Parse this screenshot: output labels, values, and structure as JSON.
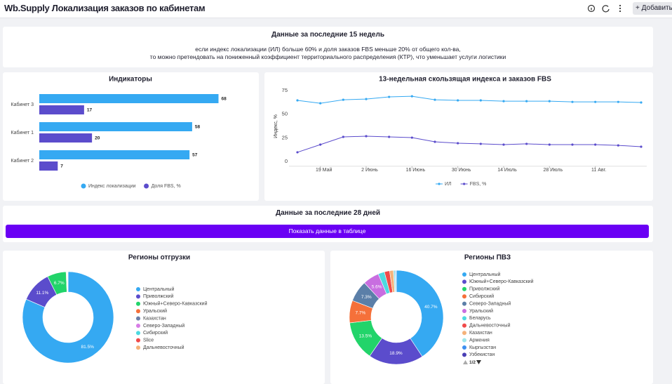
{
  "header": {
    "title": "Wb.Supply Локализация заказов по кабинетам",
    "button": "Добавить"
  },
  "info_panel": {
    "title": "Данные за последние 15 недель",
    "lines": [
      "если индекс локализации (ИЛ) больше 60% и доля заказов FBS меньше 20% от общего кол-ва,",
      "то можно претендовать на пониженный коэффициент территориального распределения (КТР), что уменьшает услуги логистики"
    ]
  },
  "section": {
    "title": "Данные за последние 28 дней",
    "button": "Показать данные в таблице"
  },
  "chart_data": [
    {
      "type": "bar",
      "orientation": "horizontal",
      "title": "Индикаторы",
      "categories": [
        "Кабинет 3",
        "Кабинет 1",
        "Кабинет 2"
      ],
      "series": [
        {
          "name": "Индекс локализации",
          "color": "#35a9f2",
          "values": [
            68,
            58,
            57
          ]
        },
        {
          "name": "Доля FBS, %",
          "color": "#5b4ccc",
          "values": [
            17,
            20,
            7
          ]
        }
      ],
      "xlim": [
        0,
        70
      ],
      "legend": "bottom"
    },
    {
      "type": "line",
      "title": "13-недельная скользящая индекса и заказов FBS",
      "y_label": "Индекс, %",
      "categories": [
        null,
        "19 Май",
        null,
        "2 Июнь",
        null,
        "16 Июнь",
        null,
        "30 Июнь",
        null,
        "14 Июль",
        null,
        "28 Июль",
        null,
        "11 Авг.",
        null,
        null
      ],
      "series": [
        {
          "name": "ИЛ",
          "color": "#35a9f2",
          "values": [
            64.6,
            61.6,
            65.3,
            66,
            68.3,
            69,
            65.3,
            64.6,
            64.6,
            63.8,
            63.8,
            63.8,
            63,
            63,
            63,
            62.4
          ]
        },
        {
          "name": "FBS, %",
          "color": "#5b4ccc",
          "values": [
            9.7,
            17.8,
            26,
            26.7,
            26,
            25.2,
            20.8,
            19.3,
            18.6,
            17.8,
            18.6,
            17.8,
            17.8,
            17.8,
            17,
            15.6
          ]
        }
      ],
      "ylim": [
        -5,
        80
      ],
      "yticks": [
        0,
        25,
        50,
        75
      ],
      "grid": false,
      "legend": "bottom"
    },
    {
      "type": "donut",
      "title": "Регионы отгрузки",
      "categories": [
        "Центральный",
        "Приволжский",
        "Южный+Северо-Кавказский",
        "Уральский",
        "Казахстан",
        "Северо-Западный",
        "Сибирский",
        "Slice",
        "Дальневосточный"
      ],
      "values": [
        81.5,
        11.1,
        6.7,
        0.2,
        0.1,
        0.1,
        0.1,
        0.1,
        0.1
      ],
      "value_labels": [
        "81.5%",
        "11.1%",
        "6.7%",
        null,
        null,
        null,
        null,
        null,
        null
      ],
      "colors": [
        "#35a9f2",
        "#5b4ccc",
        "#22d46a",
        "#f5703a",
        "#6c7fa8",
        "#d77de6",
        "#4dd9e0",
        "#f04a4a",
        "#f5b27a"
      ],
      "legend": "right"
    },
    {
      "type": "donut",
      "title": "Регионы ПВЗ",
      "categories": [
        "Центральный",
        "Южный+Северо-Кавказский",
        "Приволжский",
        "Сибирский",
        "Северо-Западный",
        "Уральский",
        "Беларусь",
        "Дальневосточный",
        "Казахстан",
        "Армения",
        "Кыргызстан",
        "Узбекистан"
      ],
      "values": [
        40.7,
        18.9,
        13.5,
        7.7,
        7.3,
        5.6,
        2.2,
        1.8,
        1.3,
        0.6,
        0.3,
        0.1
      ],
      "value_labels": [
        "40.7%",
        "18.9%",
        "13.5%",
        "7.7%",
        "7.3%",
        "5.6%",
        null,
        null,
        null,
        null,
        null,
        null
      ],
      "colors": [
        "#35a9f2",
        "#5b4ccc",
        "#22d46a",
        "#f5703a",
        "#5b7fa8",
        "#c86ee0",
        "#4dd9e0",
        "#f04a4a",
        "#f5b27a",
        "#9ee6ea",
        "#3d8ff0",
        "#4a3fb5"
      ],
      "legend": "right",
      "legend_page": "1/2"
    }
  ]
}
